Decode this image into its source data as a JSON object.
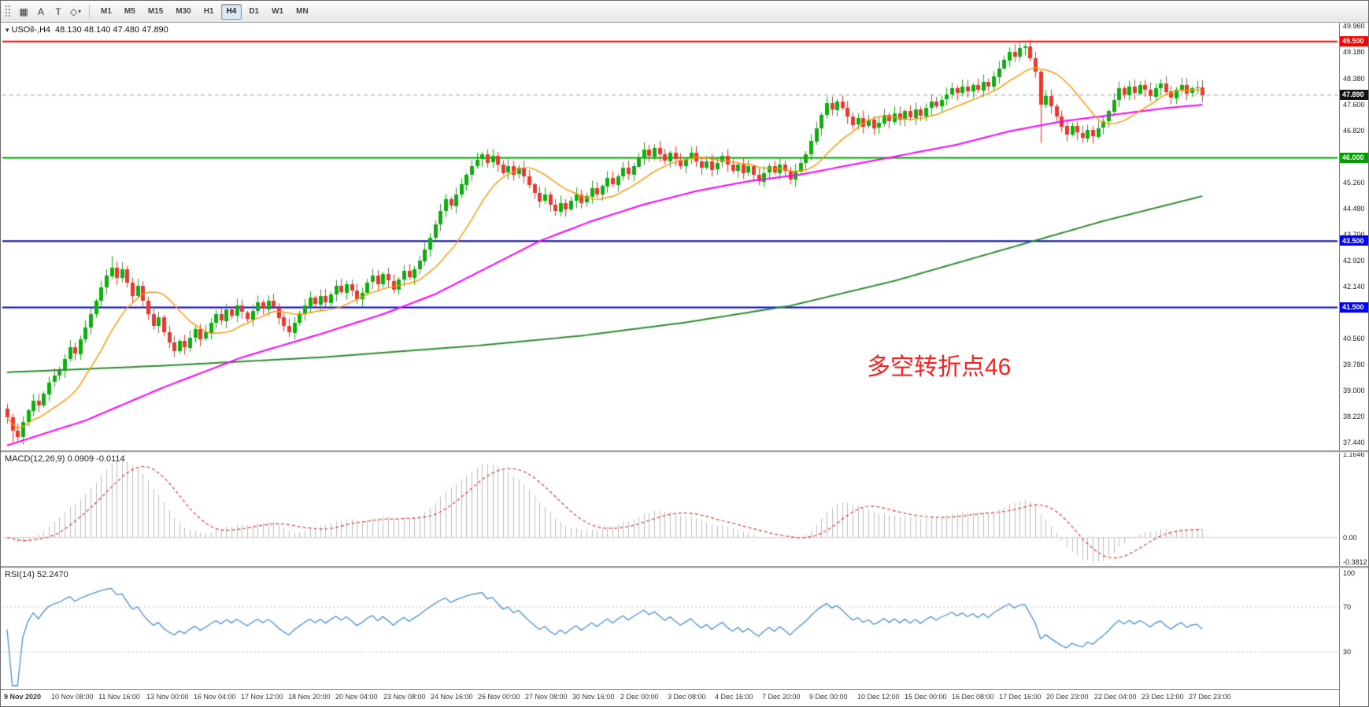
{
  "toolbar": {
    "tools": [
      {
        "id": "grid-tool-button",
        "icon": "grid-icon",
        "glyph": "▦"
      },
      {
        "id": "text-tool-button",
        "icon": "letter-a-icon",
        "glyph": "A"
      },
      {
        "id": "label-tool-button",
        "icon": "letter-t-icon",
        "glyph": "T"
      },
      {
        "id": "shapes-dropdown-button",
        "icon": "shapes-icon",
        "glyph": "◇",
        "caret": "▾"
      }
    ],
    "timeframes": [
      "M1",
      "M5",
      "M15",
      "M30",
      "H1",
      "H4",
      "D1",
      "W1",
      "MN"
    ],
    "active_timeframe": "H4"
  },
  "legend": {
    "symbol": "USOil-,H4",
    "ohlc": "48.130 48.140 47.480 47.890"
  },
  "chart_data": {
    "type": "candlestick",
    "title": "USOil-,H4",
    "price_range": [
      37.25,
      49.97
    ],
    "y_ticks": [
      "49.960",
      "49.180",
      "48.380",
      "47.600",
      "46.820",
      "45.260",
      "44.480",
      "43.700",
      "42.920",
      "42.140",
      "40.560",
      "39.780",
      "39.000",
      "38.220",
      "37.440"
    ],
    "hlines": [
      {
        "price": 49.5,
        "color": "#ff0000",
        "badge": "49.500"
      },
      {
        "price": 46.0,
        "color": "#00a000",
        "badge": "46.000"
      },
      {
        "price": 43.5,
        "color": "#0000ff",
        "badge": "43.500"
      },
      {
        "price": 41.5,
        "color": "#0000ff",
        "badge": "41.500"
      }
    ],
    "current_price": {
      "value": 47.89,
      "badge": "47.890",
      "badge_color": "#141414"
    },
    "colors": {
      "bull": "#0fae0f",
      "bear": "#e8392e",
      "ma_fast": "#ff9500",
      "ma_mid": "#ff00ff",
      "ma_slow": "#2e8b2e",
      "macd_hist": "#bdbdbd",
      "macd_signal": "#e43b3b",
      "rsi": "#4a8fd2",
      "price_line": "#9c9c9c"
    },
    "candles": {
      "first_open": 38.45,
      "closes": [
        38.2,
        37.8,
        37.6,
        38.05,
        38.4,
        38.7,
        38.55,
        38.9,
        39.25,
        39.45,
        39.6,
        39.95,
        40.3,
        40.1,
        40.55,
        40.9,
        41.3,
        41.7,
        42.1,
        42.45,
        42.7,
        42.4,
        42.65,
        42.25,
        41.85,
        42.15,
        41.7,
        41.3,
        40.95,
        41.2,
        40.75,
        40.45,
        40.2,
        40.5,
        40.3,
        40.6,
        40.85,
        40.55,
        40.75,
        41.05,
        41.3,
        41.1,
        41.45,
        41.25,
        41.55,
        41.35,
        41.15,
        41.4,
        41.65,
        41.45,
        41.7,
        41.5,
        41.2,
        40.95,
        40.75,
        41.05,
        41.3,
        41.55,
        41.8,
        41.6,
        41.85,
        41.65,
        41.9,
        42.15,
        41.95,
        42.2,
        42.0,
        41.75,
        41.95,
        42.25,
        42.45,
        42.2,
        42.5,
        42.3,
        42.05,
        42.35,
        42.6,
        42.4,
        42.65,
        42.9,
        43.25,
        43.6,
        44.0,
        44.4,
        44.75,
        44.55,
        44.9,
        45.2,
        45.5,
        45.75,
        45.95,
        46.1,
        45.85,
        46.05,
        45.8,
        45.55,
        45.75,
        45.5,
        45.7,
        45.45,
        45.2,
        44.95,
        44.7,
        44.9,
        44.6,
        44.4,
        44.65,
        44.45,
        44.7,
        44.9,
        44.65,
        44.85,
        45.1,
        44.9,
        45.15,
        45.4,
        45.2,
        45.45,
        45.7,
        45.5,
        45.75,
        46.0,
        46.25,
        46.05,
        46.3,
        46.1,
        45.9,
        46.15,
        45.95,
        45.75,
        45.95,
        46.15,
        45.9,
        45.7,
        45.9,
        45.65,
        45.85,
        46.05,
        45.8,
        45.6,
        45.8,
        45.55,
        45.75,
        45.5,
        45.3,
        45.55,
        45.75,
        45.55,
        45.8,
        45.6,
        45.35,
        45.6,
        45.85,
        46.1,
        46.5,
        46.9,
        47.3,
        47.65,
        47.45,
        47.7,
        47.5,
        47.25,
        47.0,
        47.2,
        46.95,
        47.15,
        46.9,
        47.05,
        47.3,
        47.1,
        47.35,
        47.15,
        47.4,
        47.2,
        47.45,
        47.25,
        47.5,
        47.7,
        47.55,
        47.75,
        47.9,
        48.1,
        47.95,
        48.15,
        48.0,
        48.2,
        48.05,
        48.3,
        48.15,
        48.45,
        48.7,
        48.95,
        49.2,
        49.05,
        49.3,
        49.35,
        49.0,
        48.6,
        47.6,
        47.85,
        47.55,
        47.25,
        46.95,
        46.7,
        46.95,
        46.75,
        46.6,
        46.85,
        46.65,
        46.9,
        47.1,
        47.4,
        47.75,
        48.1,
        47.9,
        48.15,
        47.95,
        48.2,
        48.05,
        47.85,
        48.1,
        48.25,
        48.0,
        47.8,
        48.05,
        48.2,
        47.95,
        48.1,
        48.13,
        47.89
      ],
      "overrides": [
        {
          "i": 1,
          "low": 37.45
        },
        {
          "i": 20,
          "high": 43.05
        },
        {
          "i": 198,
          "low": 46.45
        }
      ]
    },
    "overlays": {
      "ma_fast": {
        "type": "sma",
        "period": 13
      },
      "ma_mid": {
        "type": "anchors",
        "points": [
          [
            0,
            37.35
          ],
          [
            15,
            38.1
          ],
          [
            30,
            39.1
          ],
          [
            45,
            40.0
          ],
          [
            60,
            40.7
          ],
          [
            72,
            41.3
          ],
          [
            82,
            41.9
          ],
          [
            92,
            42.7
          ],
          [
            102,
            43.5
          ],
          [
            112,
            44.1
          ],
          [
            122,
            44.6
          ],
          [
            132,
            45.0
          ],
          [
            142,
            45.3
          ],
          [
            152,
            45.5
          ],
          [
            162,
            45.8
          ],
          [
            172,
            46.1
          ],
          [
            182,
            46.4
          ],
          [
            192,
            46.8
          ],
          [
            202,
            47.1
          ],
          [
            212,
            47.3
          ],
          [
            222,
            47.5
          ],
          [
            229,
            47.6
          ]
        ]
      },
      "ma_slow": {
        "type": "anchors",
        "points": [
          [
            0,
            39.55
          ],
          [
            30,
            39.75
          ],
          [
            60,
            40.0
          ],
          [
            90,
            40.35
          ],
          [
            110,
            40.65
          ],
          [
            130,
            41.05
          ],
          [
            150,
            41.55
          ],
          [
            170,
            42.3
          ],
          [
            190,
            43.2
          ],
          [
            210,
            44.1
          ],
          [
            229,
            44.85
          ]
        ]
      }
    },
    "indicators": [
      {
        "name": "MACD",
        "params": [
          12,
          26,
          9
        ],
        "label": "MACD(12,26,9) 0.0909 -0.0114",
        "axis_labels": [
          "1.1646",
          "0.00",
          "-0.3812"
        ]
      },
      {
        "name": "RSI",
        "params": [
          14
        ],
        "label": "RSI(14) 52.2470",
        "axis_labels": [
          "100",
          "70",
          "30"
        ],
        "levels": [
          70,
          30
        ]
      }
    ],
    "x_labels": [
      "9 Nov 2020",
      "10 Nov 08:00",
      "11 Nov 16:00",
      "13 Nov 00:00",
      "16 Nov 04:00",
      "17 Nov 12:00",
      "18 Nov 20:00",
      "20 Nov 04:00",
      "23 Nov 08:00",
      "24 Nov 16:00",
      "26 Nov 00:00",
      "27 Nov 08:00",
      "30 Nov 16:00",
      "2 Dec 00:00",
      "3 Dec 08:00",
      "4 Dec 16:00",
      "7 Dec 20:00",
      "9 Dec 00:00",
      "10 Dec 12:00",
      "15 Dec 00:00",
      "16 Dec 08:00",
      "17 Dec 16:00",
      "20 Dec 23:00",
      "22 Dec 04:00",
      "23 Dec 12:00",
      "27 Dec 23:00"
    ],
    "annotation": {
      "text": "多空转折点46",
      "color": "#ff1f1f"
    }
  }
}
